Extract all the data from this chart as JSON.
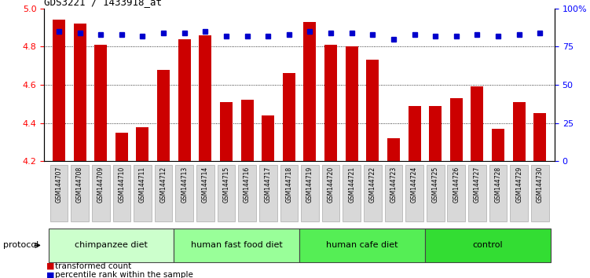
{
  "title": "GDS3221 / 1433918_at",
  "samples": [
    "GSM144707",
    "GSM144708",
    "GSM144709",
    "GSM144710",
    "GSM144711",
    "GSM144712",
    "GSM144713",
    "GSM144714",
    "GSM144715",
    "GSM144716",
    "GSM144717",
    "GSM144718",
    "GSM144719",
    "GSM144720",
    "GSM144721",
    "GSM144722",
    "GSM144723",
    "GSM144724",
    "GSM144725",
    "GSM144726",
    "GSM144727",
    "GSM144728",
    "GSM144729",
    "GSM144730"
  ],
  "transformed_count": [
    4.94,
    4.92,
    4.81,
    4.35,
    4.38,
    4.68,
    4.84,
    4.86,
    4.51,
    4.52,
    4.44,
    4.66,
    4.93,
    4.81,
    4.8,
    4.73,
    4.32,
    4.49,
    4.49,
    4.53,
    4.59,
    4.37,
    4.51,
    4.45
  ],
  "percentile_rank": [
    85,
    84,
    83,
    83,
    82,
    84,
    84,
    85,
    82,
    82,
    82,
    83,
    85,
    84,
    84,
    83,
    80,
    83,
    82,
    82,
    83,
    82,
    83,
    84
  ],
  "groups": [
    {
      "label": "chimpanzee diet",
      "start": 0,
      "end": 6,
      "color": "#ccffcc"
    },
    {
      "label": "human fast food diet",
      "start": 6,
      "end": 12,
      "color": "#99ff99"
    },
    {
      "label": "human cafe diet",
      "start": 12,
      "end": 18,
      "color": "#55ee55"
    },
    {
      "label": "control",
      "start": 18,
      "end": 24,
      "color": "#33dd33"
    }
  ],
  "bar_color": "#cc0000",
  "dot_color": "#0000cc",
  "ylim_left": [
    4.2,
    5.0
  ],
  "ylim_right": [
    0,
    100
  ],
  "yticks_left": [
    4.2,
    4.4,
    4.6,
    4.8,
    5.0
  ],
  "yticks_right": [
    0,
    25,
    50,
    75,
    100
  ],
  "ytick_labels_right": [
    "0",
    "25",
    "50",
    "75",
    "100%"
  ],
  "grid_values": [
    4.4,
    4.6,
    4.8
  ],
  "bar_width": 0.6,
  "protocol_label": "protocol",
  "tick_box_color": "#d8d8d8",
  "tick_box_edgecolor": "#aaaaaa"
}
